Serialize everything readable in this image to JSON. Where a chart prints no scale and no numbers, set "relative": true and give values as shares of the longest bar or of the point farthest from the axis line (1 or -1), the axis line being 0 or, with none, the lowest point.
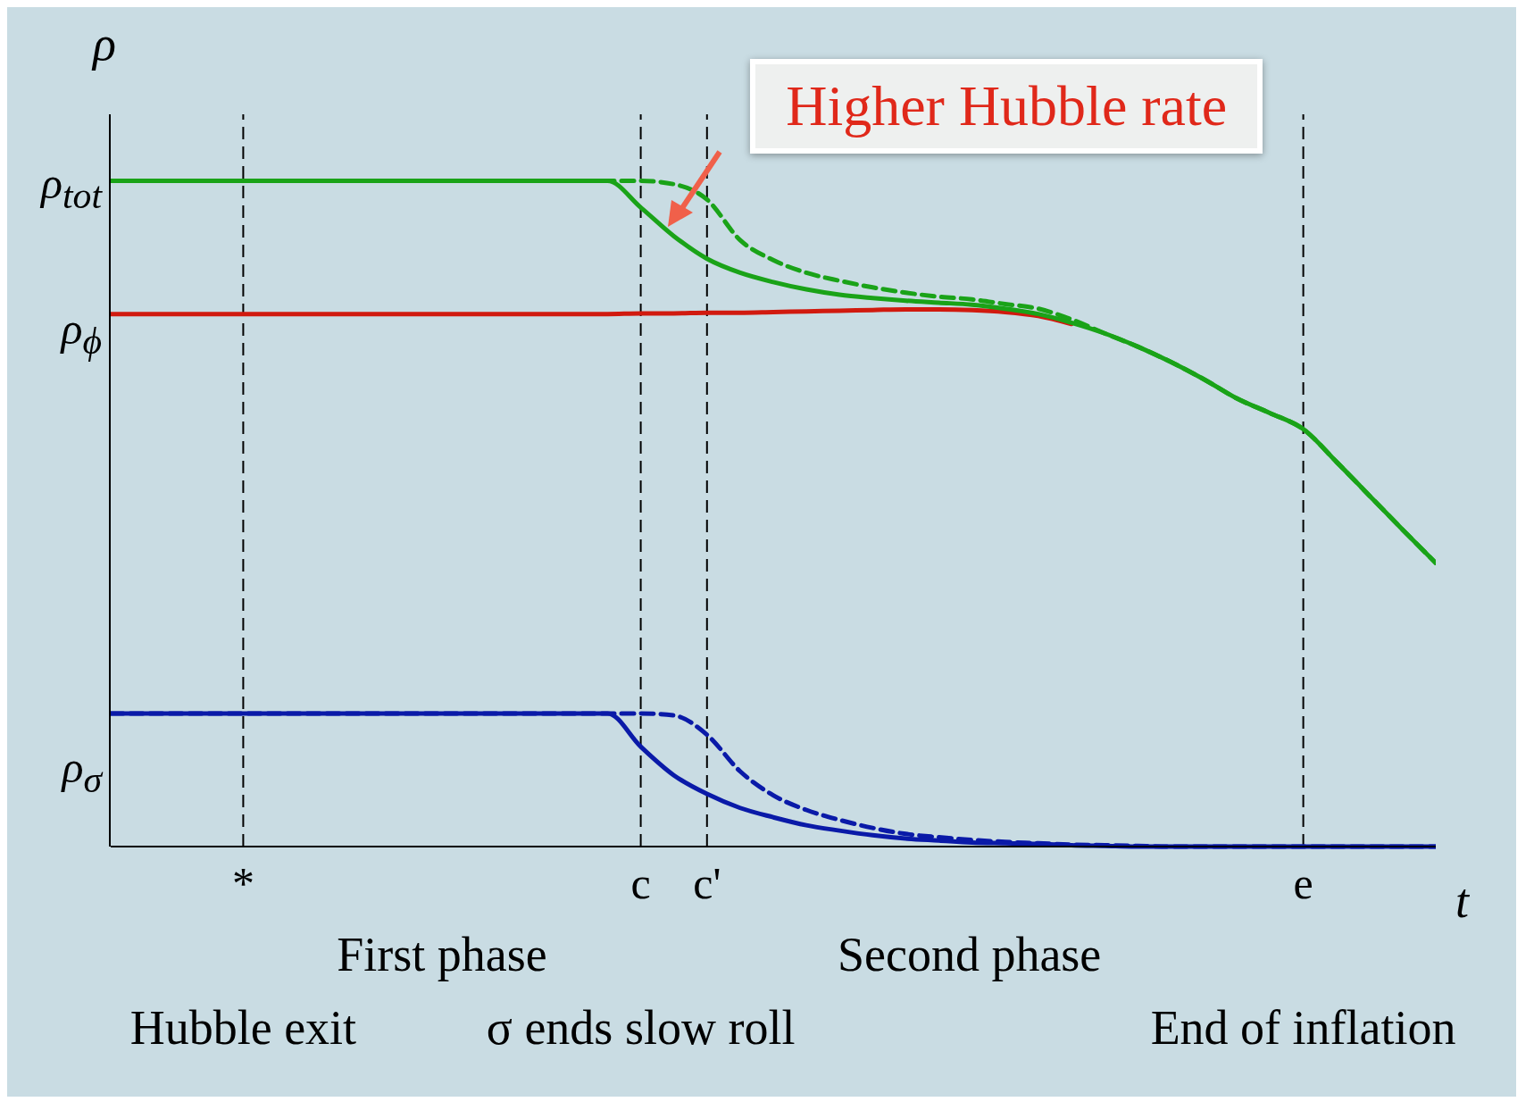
{
  "chart_data": {
    "type": "line",
    "relative": true,
    "ylabel": "ρ",
    "xlabel": "t",
    "categories": [
      null,
      null,
      null,
      null,
      "*",
      null,
      null,
      null,
      null,
      null,
      null,
      null,
      null,
      null,
      null,
      null,
      "c",
      null,
      "c'",
      null,
      null,
      null,
      null,
      null,
      null,
      null,
      null,
      null,
      null,
      null,
      null,
      null,
      null,
      null,
      null,
      null,
      "e",
      null,
      null,
      null,
      null
    ],
    "series": [
      {
        "color": "#d11a0f",
        "line_style": "solid",
        "values": [
          0.8,
          0.8,
          0.8,
          0.8,
          0.8,
          0.8,
          0.8,
          0.8,
          0.8,
          0.8,
          0.8,
          0.8,
          0.8,
          0.8,
          0.8,
          0.8,
          0.801,
          0.801,
          0.802,
          0.802,
          0.803,
          0.804,
          0.805,
          0.806,
          0.807,
          0.807,
          0.806,
          0.803,
          0.797,
          0.785,
          null,
          null,
          null,
          null,
          null,
          null,
          null,
          null,
          null,
          null,
          null
        ]
      },
      {
        "color": "#1aa318",
        "line_style": "dashed",
        "values": [
          1,
          1,
          1,
          1,
          1,
          1,
          1,
          1,
          1,
          1,
          1,
          1,
          1,
          1,
          1,
          1,
          1,
          0.995,
          0.972,
          0.911,
          0.881,
          0.862,
          0.85,
          0.84,
          0.832,
          0.826,
          0.822,
          0.815,
          0.808,
          0.792,
          0.771,
          0.751,
          0.728,
          0.702,
          0.673,
          0.651,
          0.627,
          0.578,
          0.527,
          0.476,
          0.426
        ]
      },
      {
        "color": "#1aa318",
        "line_style": "solid",
        "values": [
          1,
          1,
          1,
          1,
          1,
          1,
          1,
          1,
          1,
          1,
          1,
          1,
          1,
          1,
          1,
          1,
          0.96,
          0.917,
          0.883,
          0.862,
          0.848,
          0.837,
          0.829,
          0.824,
          0.82,
          0.817,
          0.814,
          0.808,
          0.8,
          0.787,
          0.771,
          0.751,
          0.728,
          0.702,
          0.673,
          0.651,
          0.627,
          0.578,
          0.527,
          0.476,
          0.426
        ]
      },
      {
        "color": "#0a1aa8",
        "line_style": "dashed",
        "values": [
          0.2,
          0.2,
          0.2,
          0.2,
          0.2,
          0.2,
          0.2,
          0.2,
          0.2,
          0.2,
          0.2,
          0.2,
          0.2,
          0.2,
          0.2,
          0.2,
          0.2,
          0.197,
          0.168,
          0.113,
          0.077,
          0.055,
          0.04,
          0.028,
          0.019,
          0.014,
          0.01,
          0.007,
          0.005,
          0.003,
          0.002,
          0.001,
          0,
          0,
          0,
          0,
          0,
          0,
          0,
          0,
          0
        ]
      },
      {
        "color": "#0a1aa8",
        "line_style": "solid",
        "values": [
          0.2,
          0.2,
          0.2,
          0.2,
          0.2,
          0.2,
          0.2,
          0.2,
          0.2,
          0.2,
          0.2,
          0.2,
          0.2,
          0.2,
          0.2,
          0.2,
          0.15,
          0.107,
          0.079,
          0.058,
          0.044,
          0.032,
          0.024,
          0.017,
          0.012,
          0.009,
          0.006,
          0.005,
          0.004,
          0.002,
          0.001,
          0,
          0,
          0,
          0,
          0,
          0,
          0,
          0,
          0,
          0
        ]
      }
    ],
    "ref_lines": [
      {
        "axis": "x",
        "value": "*",
        "color": "#000000",
        "line_style": "dashed"
      },
      {
        "axis": "x",
        "value": "c",
        "color": "#000000",
        "line_style": "dashed"
      },
      {
        "axis": "x",
        "value": "c'",
        "color": "#000000",
        "line_style": "dashed"
      },
      {
        "axis": "x",
        "value": "e",
        "color": "#000000",
        "line_style": "dashed"
      }
    ],
    "annotations": [
      "ρ$_{tot}$",
      "ρ$_{ϕ}$",
      "ρ$_{σ}$",
      "Higher Hubble rate",
      "First phase",
      "Second phase",
      "Hubble exit",
      "σ ends slow roll",
      "End of inflation"
    ],
    "marker": "none"
  }
}
